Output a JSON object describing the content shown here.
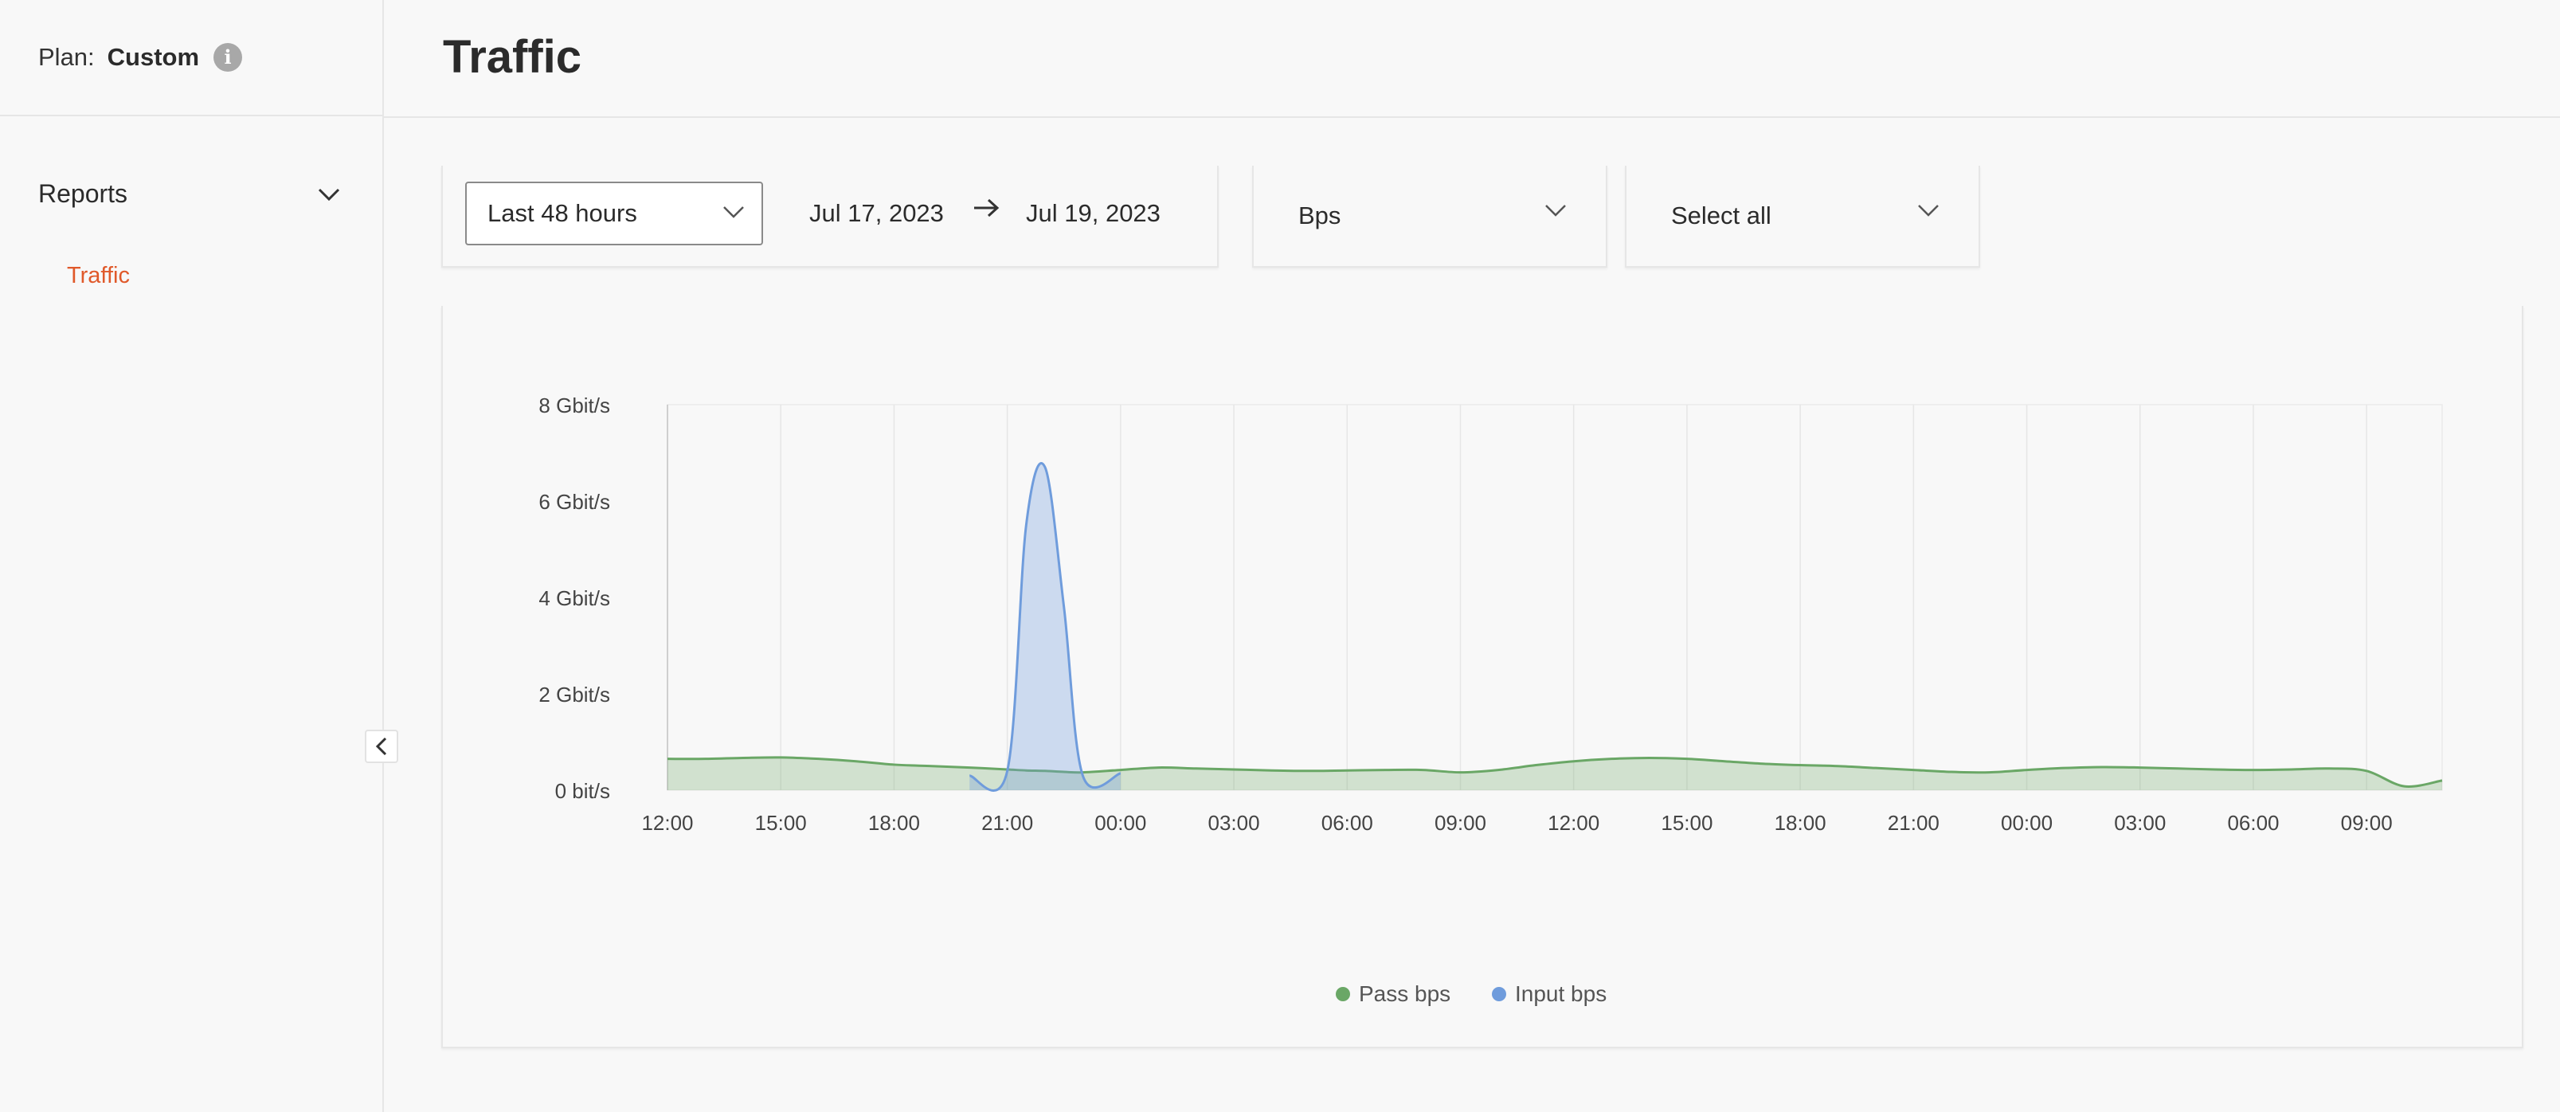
{
  "sidebar": {
    "plan_label": "Plan:",
    "plan_value": "Custom",
    "section_label": "Reports",
    "items": [
      {
        "label": "Traffic",
        "active": true
      }
    ]
  },
  "header": {
    "title": "Traffic"
  },
  "filters": {
    "range": "Last 48 hours",
    "date_from": "Jul 17, 2023",
    "date_to": "Jul 19, 2023",
    "unit": "Bps",
    "selection": "Select all"
  },
  "colors": {
    "accent": "#e0592a",
    "pass": "#6aa766",
    "input": "#6f9cdc"
  },
  "chart_data": {
    "type": "area",
    "x": [
      "12:00",
      "13:00",
      "14:00",
      "15:00",
      "16:00",
      "17:00",
      "18:00",
      "19:00",
      "20:00",
      "21:00",
      "21:30",
      "22:00",
      "22:30",
      "23:00",
      "00:00",
      "01:00",
      "02:00",
      "03:00",
      "04:00",
      "05:00",
      "06:00",
      "07:00",
      "08:00",
      "09:00",
      "10:00",
      "11:00",
      "12:00",
      "13:00",
      "14:00",
      "15:00",
      "16:00",
      "17:00",
      "18:00",
      "19:00",
      "20:00",
      "21:00",
      "22:00",
      "23:00",
      "00:00",
      "01:00",
      "02:00",
      "03:00",
      "04:00",
      "05:00",
      "06:00",
      "07:00",
      "08:00",
      "09:00",
      "10:00",
      "11:00"
    ],
    "series": [
      {
        "name": "Pass bps",
        "values": [
          0.65,
          0.65,
          0.67,
          0.68,
          0.65,
          0.6,
          0.53,
          0.5,
          0.47,
          0.43,
          0.41,
          0.4,
          0.38,
          0.37,
          0.42,
          0.47,
          0.45,
          0.43,
          0.41,
          0.4,
          0.41,
          0.42,
          0.42,
          0.37,
          0.42,
          0.52,
          0.6,
          0.65,
          0.67,
          0.65,
          0.6,
          0.55,
          0.52,
          0.5,
          0.46,
          0.42,
          0.38,
          0.37,
          0.42,
          0.46,
          0.48,
          0.47,
          0.45,
          0.43,
          0.42,
          0.43,
          0.45,
          0.4,
          0.08,
          0.2
        ]
      },
      {
        "name": "Input bps",
        "values": [
          null,
          null,
          null,
          null,
          null,
          null,
          null,
          null,
          0.3,
          0.4,
          5.5,
          6.7,
          3.8,
          0.3,
          0.35,
          null,
          null,
          null,
          null,
          null,
          null,
          null,
          null,
          null,
          null,
          null,
          null,
          null,
          null,
          null,
          null,
          null,
          null,
          null,
          null,
          null,
          null,
          null,
          null,
          null,
          null,
          null,
          null,
          null,
          null,
          null,
          null,
          null,
          null,
          null
        ]
      }
    ],
    "x_ticks": [
      "12:00",
      "15:00",
      "18:00",
      "21:00",
      "00:00",
      "03:00",
      "06:00",
      "09:00",
      "12:00",
      "15:00",
      "18:00",
      "21:00",
      "00:00",
      "03:00",
      "06:00",
      "09:00"
    ],
    "y_ticks": [
      "8 Gbit/s",
      "6 Gbit/s",
      "4 Gbit/s",
      "2 Gbit/s",
      "0 bit/s"
    ],
    "ylim": [
      0,
      8
    ],
    "grid": true,
    "legend": "bottom-center"
  }
}
